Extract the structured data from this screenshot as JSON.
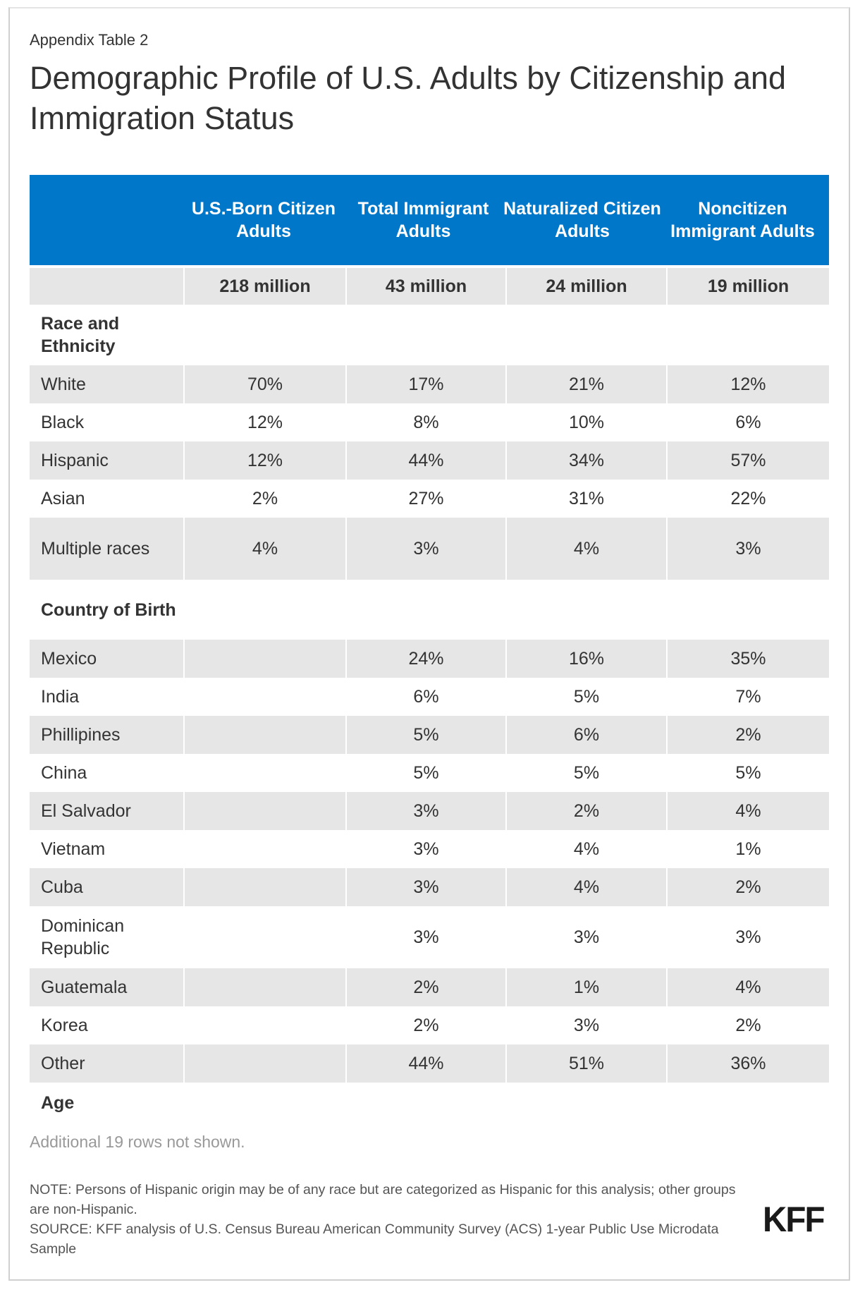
{
  "kicker": "Appendix Table 2",
  "title": "Demographic Profile of U.S. Adults by Citizenship and Immigration Status",
  "colors": {
    "header_bg": "#0077c8",
    "row_shade": "#e6e6e6"
  },
  "table": {
    "columns": [
      "",
      "U.S.-Born Citizen Adults",
      "Total Immigrant Adults",
      "Naturalized Citizen Adults",
      "Noncitizen Immigrant Adults"
    ],
    "population": [
      "",
      "218 million",
      "43 million",
      "24 million",
      "19 million"
    ],
    "sections": [
      {
        "label": "Race and Ethnicity",
        "rows": [
          {
            "label": "White",
            "values": [
              "70%",
              "17%",
              "21%",
              "12%"
            ]
          },
          {
            "label": "Black",
            "values": [
              "12%",
              "8%",
              "10%",
              "6%"
            ]
          },
          {
            "label": "Hispanic",
            "values": [
              "12%",
              "44%",
              "34%",
              "57%"
            ]
          },
          {
            "label": "Asian",
            "values": [
              "2%",
              "27%",
              "31%",
              "22%"
            ]
          },
          {
            "label": "Multiple races",
            "values": [
              "4%",
              "3%",
              "4%",
              "3%"
            ]
          }
        ]
      },
      {
        "label": "Country of Birth",
        "rows": [
          {
            "label": "Mexico",
            "values": [
              "",
              "24%",
              "16%",
              "35%"
            ]
          },
          {
            "label": "India",
            "values": [
              "",
              "6%",
              "5%",
              "7%"
            ]
          },
          {
            "label": "Phillipines",
            "values": [
              "",
              "5%",
              "6%",
              "2%"
            ]
          },
          {
            "label": "China",
            "values": [
              "",
              "5%",
              "5%",
              "5%"
            ]
          },
          {
            "label": "El Salvador",
            "values": [
              "",
              "3%",
              "2%",
              "4%"
            ]
          },
          {
            "label": "Vietnam",
            "values": [
              "",
              "3%",
              "4%",
              "1%"
            ]
          },
          {
            "label": "Cuba",
            "values": [
              "",
              "3%",
              "4%",
              "2%"
            ]
          },
          {
            "label": "Dominican Republic",
            "values": [
              "",
              "3%",
              "3%",
              "3%"
            ]
          },
          {
            "label": "Guatemala",
            "values": [
              "",
              "2%",
              "1%",
              "4%"
            ]
          },
          {
            "label": "Korea",
            "values": [
              "",
              "2%",
              "3%",
              "2%"
            ]
          },
          {
            "label": "Other",
            "values": [
              "",
              "44%",
              "51%",
              "36%"
            ]
          }
        ]
      },
      {
        "label": "Age",
        "rows": []
      }
    ]
  },
  "more_rows": "Additional 19 rows not shown.",
  "note": "NOTE: Persons of Hispanic origin may be of any race but are categorized as Hispanic for this analysis; other groups are non-Hispanic.",
  "source": "SOURCE: KFF analysis of U.S. Census Bureau American Community Survey (ACS) 1-year Public Use Microdata Sample",
  "logo": "KFF"
}
